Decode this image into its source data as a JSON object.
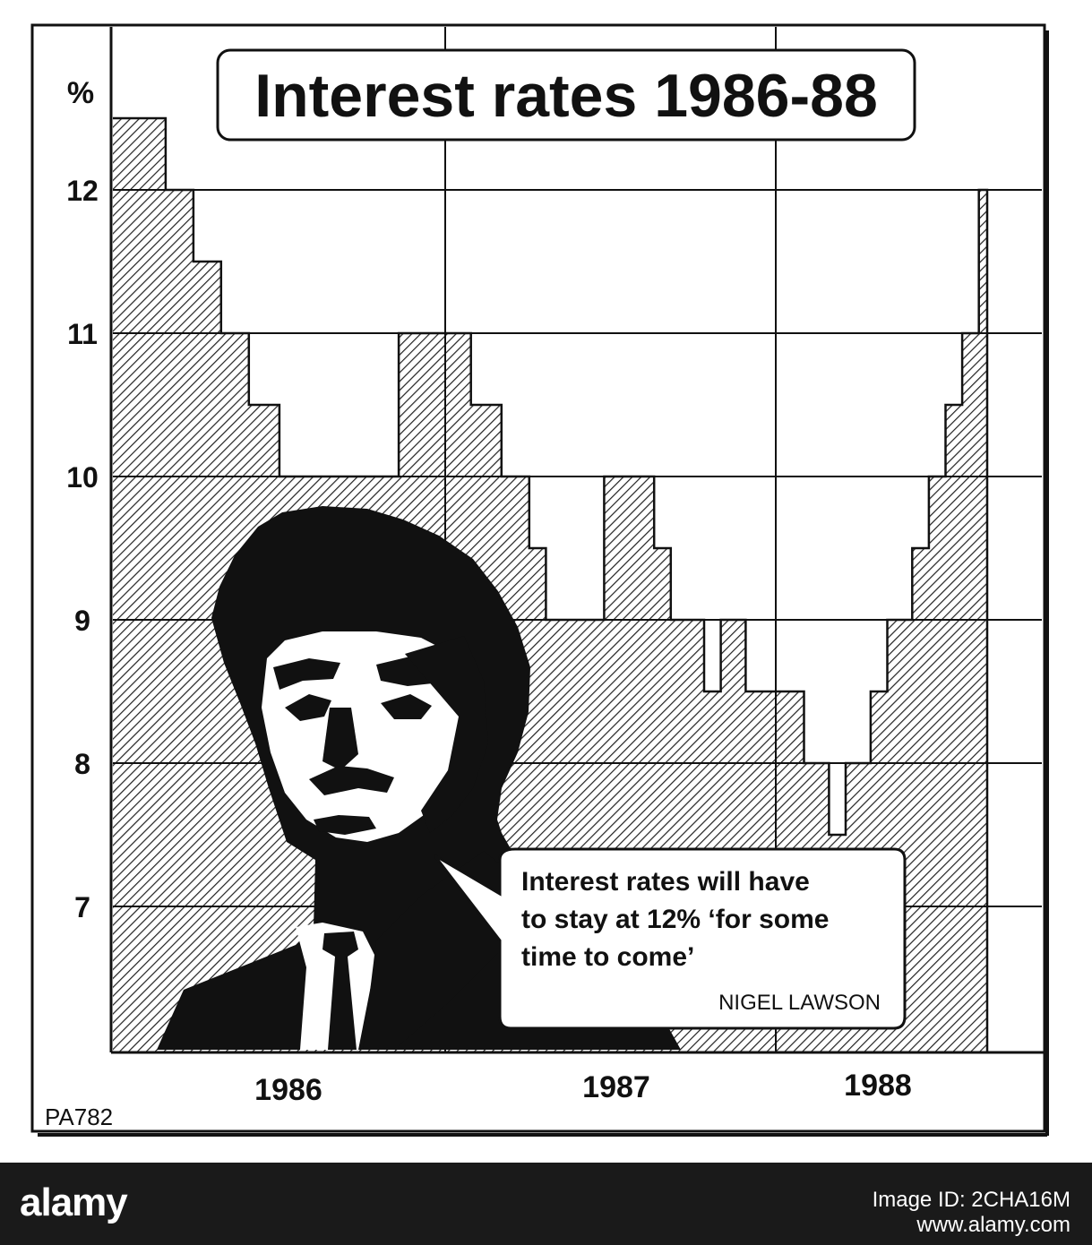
{
  "chart_data": {
    "type": "step",
    "title": "Interest rates 1986-88",
    "ylabel": "%",
    "ylim": [
      6,
      12.5
    ],
    "yticks": [
      "12",
      "11",
      "10",
      "9",
      "8",
      "7"
    ],
    "x_year_labels": [
      "1986",
      "1987",
      "1988"
    ],
    "series": [
      {
        "values": [
          12.5,
          12,
          11.5,
          11,
          10.5,
          10,
          11,
          10.5,
          10,
          9.5,
          9,
          10,
          9.5,
          9,
          8.5,
          9,
          8.5,
          8,
          7.5,
          8,
          8.5,
          9,
          9.5,
          10,
          10.5,
          11,
          12
        ]
      }
    ]
  },
  "quote": {
    "lines": [
      "Interest rates will have",
      "to stay at 12% ‘for some",
      "time to come’"
    ],
    "attribution": "NIGEL LAWSON"
  },
  "source_code": "PA782",
  "footer": {
    "logo": "alamy",
    "image_id": "Image ID: 2CHA16M",
    "url": "www.alamy.com"
  }
}
